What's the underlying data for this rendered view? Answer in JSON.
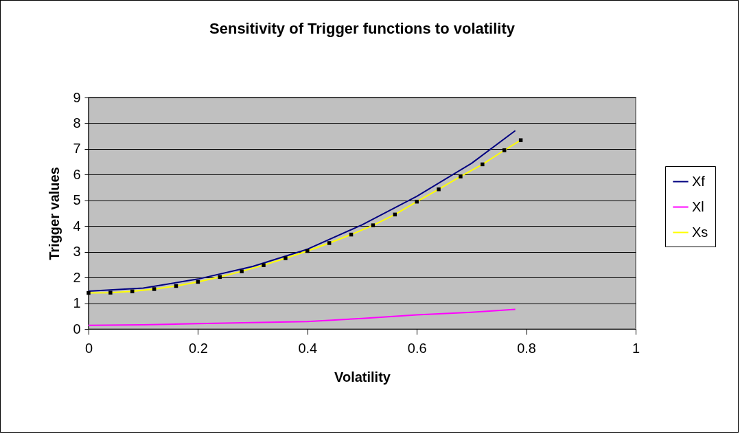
{
  "chart_data": {
    "type": "line",
    "title": "Sensitivity of Trigger functions to volatility",
    "xlabel": "Volatility",
    "ylabel": "Trigger values",
    "xlim": [
      0,
      1
    ],
    "xticks": [
      0,
      0.2,
      0.4,
      0.6,
      0.8,
      1
    ],
    "ylim": [
      0,
      9
    ],
    "yticks": [
      0,
      1,
      2,
      3,
      4,
      5,
      6,
      7,
      8,
      9
    ],
    "grid": "y",
    "legend": "right",
    "series": [
      {
        "name": "Xf",
        "color": "#000080",
        "x": [
          0,
          0.1,
          0.2,
          0.3,
          0.4,
          0.5,
          0.6,
          0.7,
          0.78
        ],
        "values": [
          1.47,
          1.59,
          1.94,
          2.43,
          3.1,
          4.05,
          5.16,
          6.44,
          7.71
        ]
      },
      {
        "name": "Xl",
        "color": "#ff00ff",
        "x": [
          0,
          0.1,
          0.2,
          0.3,
          0.4,
          0.5,
          0.6,
          0.7,
          0.78
        ],
        "values": [
          0.14,
          0.16,
          0.21,
          0.25,
          0.29,
          0.41,
          0.55,
          0.65,
          0.76
        ]
      },
      {
        "name": "Xs",
        "color": "#ffff00",
        "marker": "square",
        "x": [
          0,
          0.04,
          0.08,
          0.12,
          0.16,
          0.2,
          0.24,
          0.28,
          0.32,
          0.36,
          0.4,
          0.44,
          0.48,
          0.52,
          0.56,
          0.6,
          0.64,
          0.68,
          0.72,
          0.76,
          0.79
        ],
        "values": [
          1.4,
          1.41,
          1.46,
          1.55,
          1.67,
          1.83,
          2.02,
          2.24,
          2.48,
          2.75,
          3.03,
          3.34,
          3.67,
          4.03,
          4.45,
          4.95,
          5.43,
          5.93,
          6.4,
          6.95,
          7.34
        ]
      }
    ]
  }
}
